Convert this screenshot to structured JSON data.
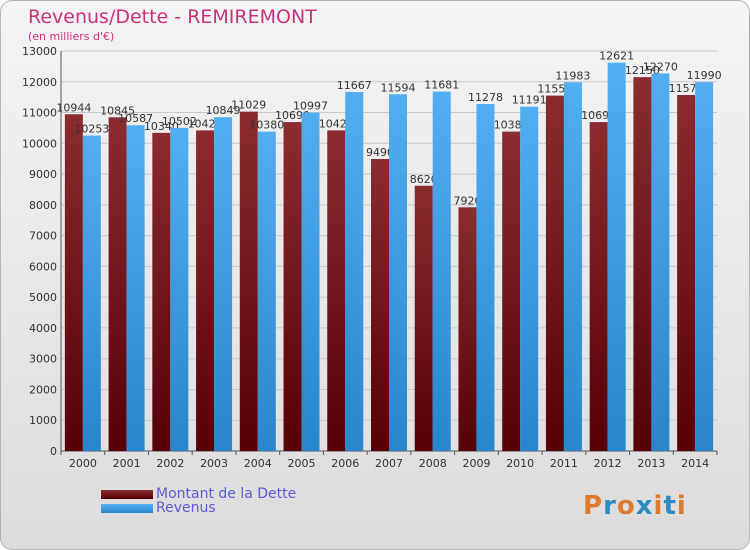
{
  "title": "Revenus/Dette - REMIREMONT",
  "subtitle": "(en milliers d'€)",
  "logo": {
    "text": "Proxiti",
    "colors": [
      "#e07b2e",
      "#2e8bc0",
      "#e07b2e",
      "#2e8bc0",
      "#e07b2e",
      "#2e8bc0",
      "#e07b2e"
    ]
  },
  "chart_data": {
    "type": "bar",
    "categories": [
      "2000",
      "2001",
      "2002",
      "2003",
      "2004",
      "2005",
      "2006",
      "2007",
      "2008",
      "2009",
      "2010",
      "2011",
      "2012",
      "2013",
      "2014"
    ],
    "series": [
      {
        "name": "Montant de la Dette",
        "color": "#7a1f24",
        "values": [
          10944,
          10845,
          10340,
          10420,
          11029,
          10690,
          10420,
          9490,
          8620,
          7920,
          10380,
          11550,
          10690,
          12150,
          11570
        ]
      },
      {
        "name": "Revenus",
        "color": "#3f9fe0",
        "values": [
          10253,
          10587,
          10502,
          10849,
          10380,
          10997,
          11667,
          11594,
          11681,
          11278,
          11191,
          11983,
          12621,
          12270,
          11990
        ]
      }
    ],
    "data_labels": [
      [
        "10944",
        "10845",
        "10340",
        "10420",
        "11029",
        "10690",
        "10420",
        "9490",
        "8620",
        "7920",
        "10380",
        "11550",
        "10690",
        "12150",
        "11570"
      ],
      [
        "10253",
        "10587",
        "10502",
        "10849",
        "10380",
        "10997",
        "11667",
        "11594",
        "11681",
        "11278",
        "11191",
        "11983",
        "12621",
        "12270",
        "11990"
      ]
    ],
    "yticks": [
      0,
      1000,
      2000,
      3000,
      4000,
      5000,
      6000,
      7000,
      8000,
      9000,
      10000,
      11000,
      12000,
      13000
    ],
    "ylim": [
      0,
      13000
    ],
    "grid": true,
    "legend_position": "bottom-left"
  }
}
